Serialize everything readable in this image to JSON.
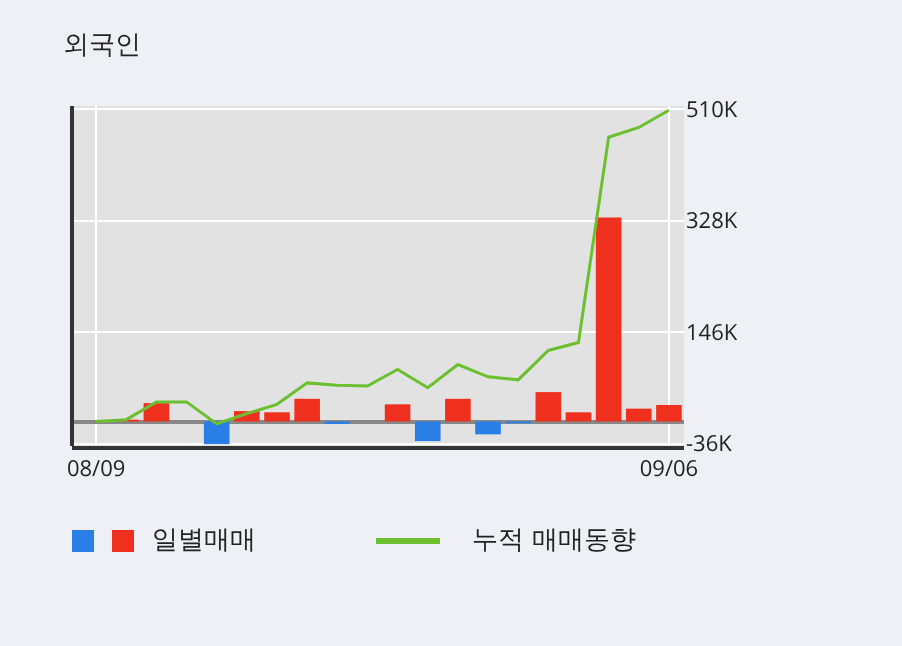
{
  "chart_data": {
    "type": "bar",
    "title": "외국인",
    "categories": [
      "08/09",
      null,
      null,
      null,
      null,
      null,
      null,
      null,
      null,
      null,
      null,
      null,
      null,
      null,
      null,
      null,
      null,
      null,
      null,
      "09/06"
    ],
    "series": [
      {
        "name": "일별매매",
        "colors": [
          "#f0301e",
          "#f0301e",
          "#f0301e",
          "#f0301e",
          "#2a7fe6",
          "#f0301e",
          "#f0301e",
          "#f0301e",
          "#2a7fe6",
          "#f0301e",
          "#f0301e",
          "#2a7fe6",
          "#f0301e",
          "#2a7fe6",
          "#2a7fe6",
          "#f0301e",
          "#f0301e",
          "#f0301e",
          "#f0301e",
          "#f0301e"
        ],
        "values": [
          0,
          3,
          30,
          0,
          -37,
          17,
          15,
          37,
          -4,
          0,
          28,
          -32,
          37,
          -21,
          -3,
          48,
          15,
          333,
          21,
          27
        ]
      },
      {
        "type": "line",
        "name": "누적 매매동향",
        "color": "#6cbf2e",
        "values": [
          0,
          3,
          32,
          32,
          -4,
          13,
          28,
          63,
          59,
          58,
          85,
          55,
          93,
          73,
          68,
          116,
          129,
          464,
          480,
          508
        ]
      }
    ],
    "ylim": [
      -40,
      515
    ],
    "yticks": [
      {
        "value": -36,
        "label": "-36K"
      },
      {
        "value": 146,
        "label": "146K"
      },
      {
        "value": 328,
        "label": "328K"
      },
      {
        "value": 510,
        "label": "510K"
      }
    ],
    "grid": true,
    "legend": "bottom"
  }
}
